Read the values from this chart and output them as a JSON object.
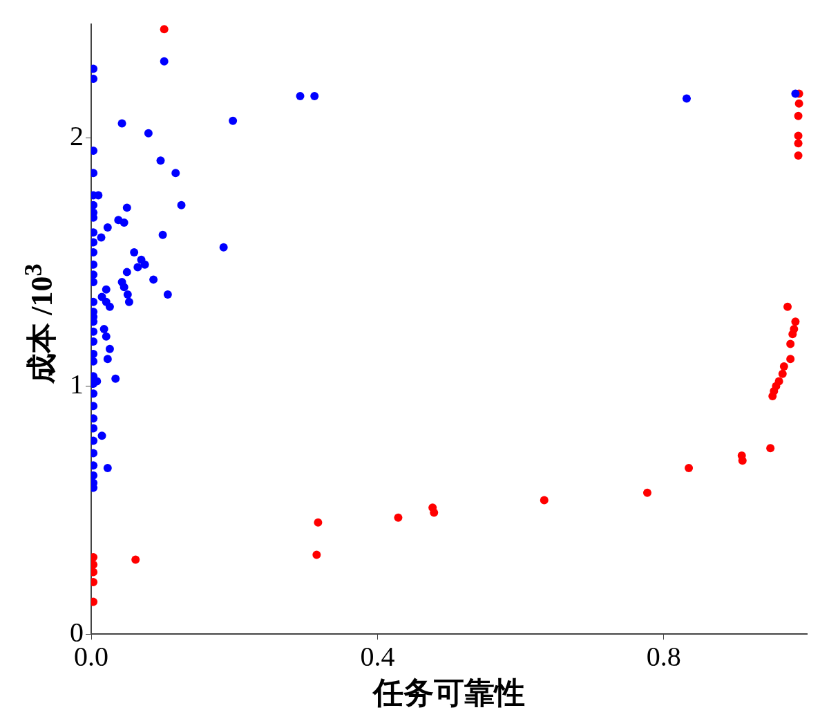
{
  "chart_data": {
    "type": "scatter",
    "xlabel": "任务可靠性",
    "ylabel": "成本 /10$^{3}$",
    "xlim": [
      0,
      1
    ],
    "ylim": [
      0,
      2.46
    ],
    "xticks": [
      {
        "value": 0,
        "label": "0.0"
      },
      0.4,
      0.8
    ],
    "yticks": [
      0,
      1,
      2
    ],
    "grid": false,
    "legend": false,
    "marker": "circle",
    "series": [
      {
        "color": "#0000ff",
        "x": [
          0.102,
          0.292,
          0.312,
          0.043,
          0.198,
          0.08,
          0.097,
          0.118,
          0.01,
          0.126,
          0.05,
          0.038,
          0.046,
          0.023,
          0.014,
          0.1,
          0.185,
          0.06,
          0.07,
          0.075,
          0.065,
          0.05,
          0.087,
          0.043,
          0.046,
          0.051,
          0.053,
          0.107,
          0.021,
          0.015,
          0.021,
          0.026,
          0.018,
          0.021,
          0.026,
          0.023,
          0.034,
          0.008,
          0.015,
          0.023,
          0.832,
          0.984,
          0.003,
          0.003,
          0.003,
          0.003,
          0.003,
          0.003,
          0.003,
          0.003,
          0.003,
          0.003,
          0.003,
          0.003,
          0.003,
          0.003,
          0.003,
          0.003,
          0.003,
          0.003,
          0.003,
          0.003,
          0.003,
          0.003,
          0.003,
          0.003,
          0.003,
          0.003,
          0.003,
          0.003,
          0.003,
          0.003,
          0.003,
          0.003,
          0.003,
          0.003
        ],
        "values": [
          2.31,
          2.17,
          2.17,
          2.06,
          2.07,
          2.02,
          1.91,
          1.86,
          1.77,
          1.73,
          1.72,
          1.67,
          1.66,
          1.64,
          1.6,
          1.61,
          1.56,
          1.54,
          1.51,
          1.49,
          1.48,
          1.46,
          1.43,
          1.42,
          1.4,
          1.37,
          1.34,
          1.37,
          1.39,
          1.36,
          1.34,
          1.32,
          1.23,
          1.2,
          1.15,
          1.11,
          1.03,
          1.02,
          0.8,
          0.67,
          2.16,
          2.18,
          2.28,
          2.24,
          1.95,
          1.86,
          1.77,
          1.73,
          1.7,
          1.68,
          1.54,
          1.49,
          1.45,
          1.42,
          1.34,
          1.3,
          1.26,
          1.22,
          1.18,
          1.13,
          1.1,
          1.04,
          1.01,
          0.97,
          0.92,
          0.87,
          0.83,
          0.78,
          0.73,
          0.68,
          0.64,
          0.61,
          0.59,
          1.58,
          1.62,
          1.28
        ]
      },
      {
        "color": "#ff0000",
        "x": [
          0.102,
          0.003,
          0.003,
          0.003,
          0.003,
          0.003,
          0.062,
          0.317,
          0.315,
          0.429,
          0.477,
          0.479,
          0.633,
          0.777,
          0.835,
          0.909,
          0.91,
          0.949,
          0.973,
          0.984,
          0.982,
          0.98,
          0.977,
          0.977,
          0.968,
          0.966,
          0.961,
          0.957,
          0.954,
          0.952,
          0.989,
          0.989,
          0.988,
          0.988,
          0.988,
          0.988
        ],
        "values": [
          2.44,
          0.31,
          0.28,
          0.25,
          0.21,
          0.13,
          0.3,
          0.45,
          0.32,
          0.47,
          0.51,
          0.49,
          0.54,
          0.57,
          0.67,
          0.72,
          0.7,
          0.75,
          1.32,
          1.26,
          1.23,
          1.21,
          1.17,
          1.11,
          1.08,
          1.05,
          1.02,
          1,
          0.98,
          0.96,
          2.18,
          2.14,
          2.09,
          2.01,
          1.98,
          1.93
        ]
      }
    ]
  }
}
